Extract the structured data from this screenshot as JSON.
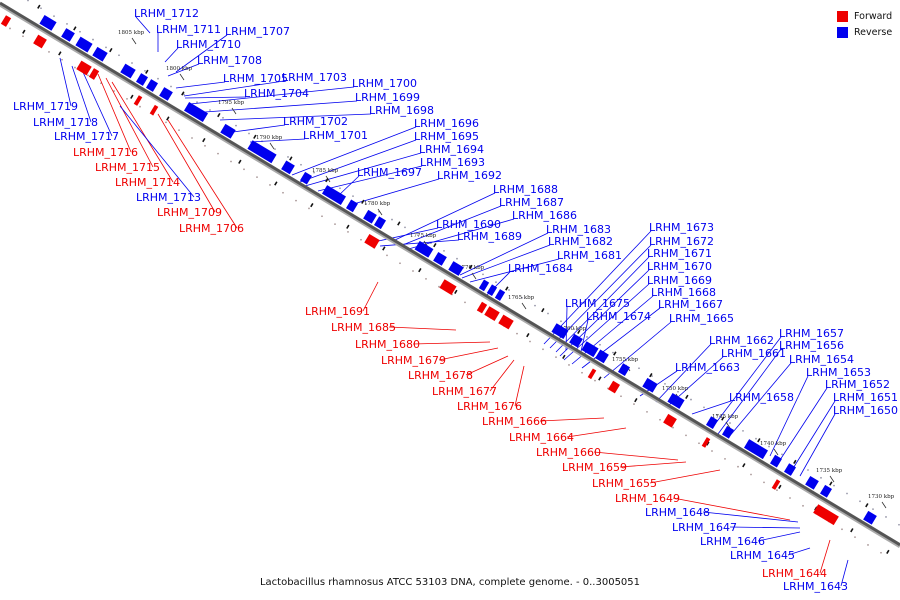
{
  "colors": {
    "forward": "#ee0000",
    "reverse": "#0000ee",
    "backbone": "#555555"
  },
  "legend": [
    {
      "label": "Forward",
      "strand": "forward"
    },
    {
      "label": "Reverse",
      "strand": "reverse"
    }
  ],
  "caption": "Lactobacillus rhamnosus ATCC 53103 DNA, complete genome. - 0..3005051",
  "kbp_marks": [
    "1805 kbp",
    "1800 kbp",
    "1795 kbp",
    "1790 kbp",
    "1785 kbp",
    "1780 kbp",
    "1775 kbp",
    "1770 kbp",
    "1765 kbp",
    "1760 kbp",
    "1755 kbp",
    "1750 kbp",
    "1745 kbp",
    "1740 kbp",
    "1735 kbp",
    "1730 kbp"
  ],
  "genes": [
    {
      "id": "LRHM_1712",
      "strand": "reverse"
    },
    {
      "id": "LRHM_1711",
      "strand": "reverse"
    },
    {
      "id": "LRHM_1710",
      "strand": "reverse"
    },
    {
      "id": "LRHM_1707",
      "strand": "reverse"
    },
    {
      "id": "LRHM_1708",
      "strand": "reverse"
    },
    {
      "id": "LRHM_1705",
      "strand": "reverse"
    },
    {
      "id": "LRHM_1703",
      "strand": "reverse"
    },
    {
      "id": "LRHM_1704",
      "strand": "reverse"
    },
    {
      "id": "LRHM_1700",
      "strand": "reverse"
    },
    {
      "id": "LRHM_1699",
      "strand": "reverse"
    },
    {
      "id": "LRHM_1698",
      "strand": "reverse"
    },
    {
      "id": "LRHM_1702",
      "strand": "reverse"
    },
    {
      "id": "LRHM_1701",
      "strand": "reverse"
    },
    {
      "id": "LRHM_1696",
      "strand": "reverse"
    },
    {
      "id": "LRHM_1695",
      "strand": "reverse"
    },
    {
      "id": "LRHM_1694",
      "strand": "reverse"
    },
    {
      "id": "LRHM_1693",
      "strand": "reverse"
    },
    {
      "id": "LRHM_1697",
      "strand": "reverse"
    },
    {
      "id": "LRHM_1692",
      "strand": "reverse"
    },
    {
      "id": "LRHM_1688",
      "strand": "reverse"
    },
    {
      "id": "LRHM_1687",
      "strand": "reverse"
    },
    {
      "id": "LRHM_1686",
      "strand": "reverse"
    },
    {
      "id": "LRHM_1690",
      "strand": "reverse"
    },
    {
      "id": "LRHM_1689",
      "strand": "reverse"
    },
    {
      "id": "LRHM_1683",
      "strand": "reverse"
    },
    {
      "id": "LRHM_1682",
      "strand": "reverse"
    },
    {
      "id": "LRHM_1681",
      "strand": "reverse"
    },
    {
      "id": "LRHM_1684",
      "strand": "reverse"
    },
    {
      "id": "LRHM_1673",
      "strand": "reverse"
    },
    {
      "id": "LRHM_1672",
      "strand": "reverse"
    },
    {
      "id": "LRHM_1671",
      "strand": "reverse"
    },
    {
      "id": "LRHM_1670",
      "strand": "reverse"
    },
    {
      "id": "LRHM_1669",
      "strand": "reverse"
    },
    {
      "id": "LRHM_1668",
      "strand": "reverse"
    },
    {
      "id": "LRHM_1667",
      "strand": "reverse"
    },
    {
      "id": "LRHM_1675",
      "strand": "reverse"
    },
    {
      "id": "LRHM_1674",
      "strand": "reverse"
    },
    {
      "id": "LRHM_1665",
      "strand": "reverse"
    },
    {
      "id": "LRHM_1662",
      "strand": "reverse"
    },
    {
      "id": "LRHM_1661",
      "strand": "reverse"
    },
    {
      "id": "LRHM_1663",
      "strand": "reverse"
    },
    {
      "id": "LRHM_1657",
      "strand": "reverse"
    },
    {
      "id": "LRHM_1656",
      "strand": "reverse"
    },
    {
      "id": "LRHM_1654",
      "strand": "reverse"
    },
    {
      "id": "LRHM_1658",
      "strand": "reverse"
    },
    {
      "id": "LRHM_1653",
      "strand": "reverse"
    },
    {
      "id": "LRHM_1652",
      "strand": "reverse"
    },
    {
      "id": "LRHM_1651",
      "strand": "reverse"
    },
    {
      "id": "LRHM_1650",
      "strand": "reverse"
    },
    {
      "id": "LRHM_1719",
      "strand": "reverse"
    },
    {
      "id": "LRHM_1718",
      "strand": "reverse"
    },
    {
      "id": "LRHM_1717",
      "strand": "reverse"
    },
    {
      "id": "LRHM_1716",
      "strand": "forward"
    },
    {
      "id": "LRHM_1715",
      "strand": "forward"
    },
    {
      "id": "LRHM_1714",
      "strand": "forward"
    },
    {
      "id": "LRHM_1713",
      "strand": "reverse"
    },
    {
      "id": "LRHM_1709",
      "strand": "forward"
    },
    {
      "id": "LRHM_1706",
      "strand": "forward"
    },
    {
      "id": "LRHM_1691",
      "strand": "forward"
    },
    {
      "id": "LRHM_1685",
      "strand": "forward"
    },
    {
      "id": "LRHM_1680",
      "strand": "forward"
    },
    {
      "id": "LRHM_1679",
      "strand": "forward"
    },
    {
      "id": "LRHM_1678",
      "strand": "forward"
    },
    {
      "id": "LRHM_1677",
      "strand": "forward"
    },
    {
      "id": "LRHM_1676",
      "strand": "forward"
    },
    {
      "id": "LRHM_1666",
      "strand": "forward"
    },
    {
      "id": "LRHM_1664",
      "strand": "forward"
    },
    {
      "id": "LRHM_1660",
      "strand": "forward"
    },
    {
      "id": "LRHM_1659",
      "strand": "forward"
    },
    {
      "id": "LRHM_1655",
      "strand": "forward"
    },
    {
      "id": "LRHM_1649",
      "strand": "forward"
    },
    {
      "id": "LRHM_1648",
      "strand": "reverse"
    },
    {
      "id": "LRHM_1647",
      "strand": "reverse"
    },
    {
      "id": "LRHM_1646",
      "strand": "reverse"
    },
    {
      "id": "LRHM_1645",
      "strand": "reverse"
    },
    {
      "id": "LRHM_1644",
      "strand": "forward"
    },
    {
      "id": "LRHM_1643",
      "strand": "reverse"
    }
  ]
}
